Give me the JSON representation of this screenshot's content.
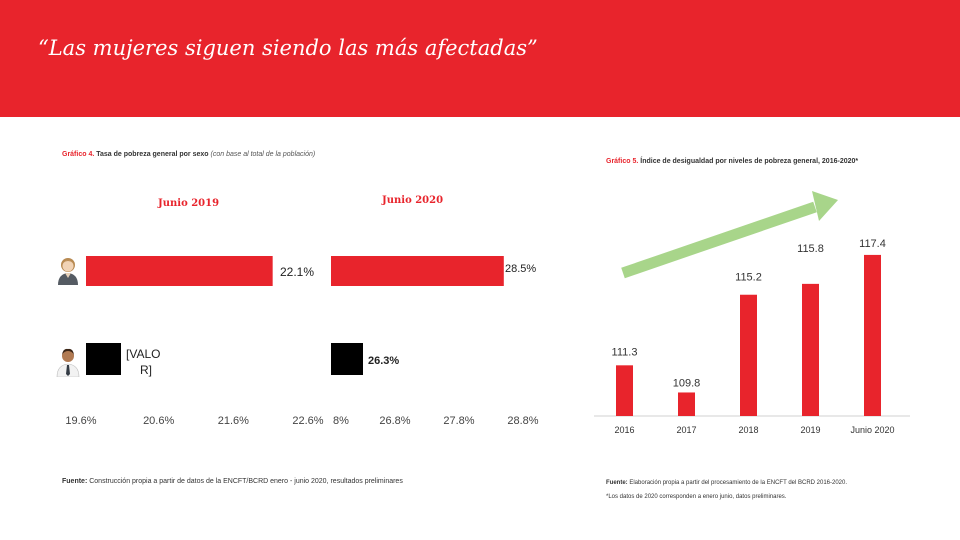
{
  "header": {
    "title": "“Las mujeres siguen siendo las más afectadas”"
  },
  "left_chart": {
    "caption_number": "Gráfico 4.",
    "caption_title": "Tasa de pobreza general por sexo",
    "caption_note": "(con base al total de la población)",
    "period_left": "Junio 2019",
    "period_right": "Junio 2020",
    "icons": [
      "woman-avatar-icon",
      "man-avatar-icon"
    ],
    "source_label": "Fuente:",
    "source_text": "Construcción propia a partir de datos de la ENCFT/BCRD enero - junio 2020, resultados preliminares"
  },
  "right_chart": {
    "caption_number": "Gráfico 5.",
    "caption_title": "Índice de desigualdad por niveles de pobreza general, 2016-2020*",
    "source_label": "Fuente:",
    "source_text": "Elaboración propia a partir del procesamiento de la ENCFT del BCRD 2016-2020.",
    "footnote": "*Los datos de 2020 corresponden a enero junio, datos preliminares."
  },
  "colors": {
    "accent": "#e8242c",
    "male_bar": "#000000",
    "trend_arrow": "#a8d58a"
  },
  "chart_data": [
    {
      "type": "bar",
      "orientation": "horizontal",
      "categories": [
        "Mujeres",
        "Hombres"
      ],
      "series": [
        {
          "name": "Junio 2019",
          "values": [
            22.1,
            19.6
          ]
        },
        {
          "name": "Junio 2020",
          "values": [
            28.5,
            26.3
          ]
        }
      ],
      "data_labels": [
        {
          "text": "22.1%",
          "series": 0,
          "index": 0
        },
        {
          "text": "[VALO R]",
          "series": 0,
          "index": 1
        },
        {
          "text": "28.5%",
          "series": 1,
          "index": 0
        },
        {
          "text": "26.3%",
          "series": 1,
          "index": 1
        }
      ],
      "panels": [
        {
          "series": 0,
          "min": 19.6,
          "max": 22.6,
          "ticks": [
            "19.6%",
            "20.6%",
            "21.6%",
            "22.6%"
          ]
        },
        {
          "series": 1,
          "min": 25.8,
          "max": 28.8,
          "ticks": [
            "8%",
            "26.8%",
            "27.8%",
            "28.8%"
          ]
        }
      ],
      "legend": "top"
    },
    {
      "type": "bar",
      "categories": [
        "2016",
        "2017",
        "2018",
        "2019",
        "Junio 2020"
      ],
      "values": [
        111.3,
        109.8,
        115.2,
        115.8,
        117.4
      ],
      "data_labels": [
        "111.3",
        "109.8",
        "115.2",
        "115.8",
        "117.4"
      ],
      "ylim": [
        108.5,
        118.5
      ],
      "grid": false
    }
  ]
}
